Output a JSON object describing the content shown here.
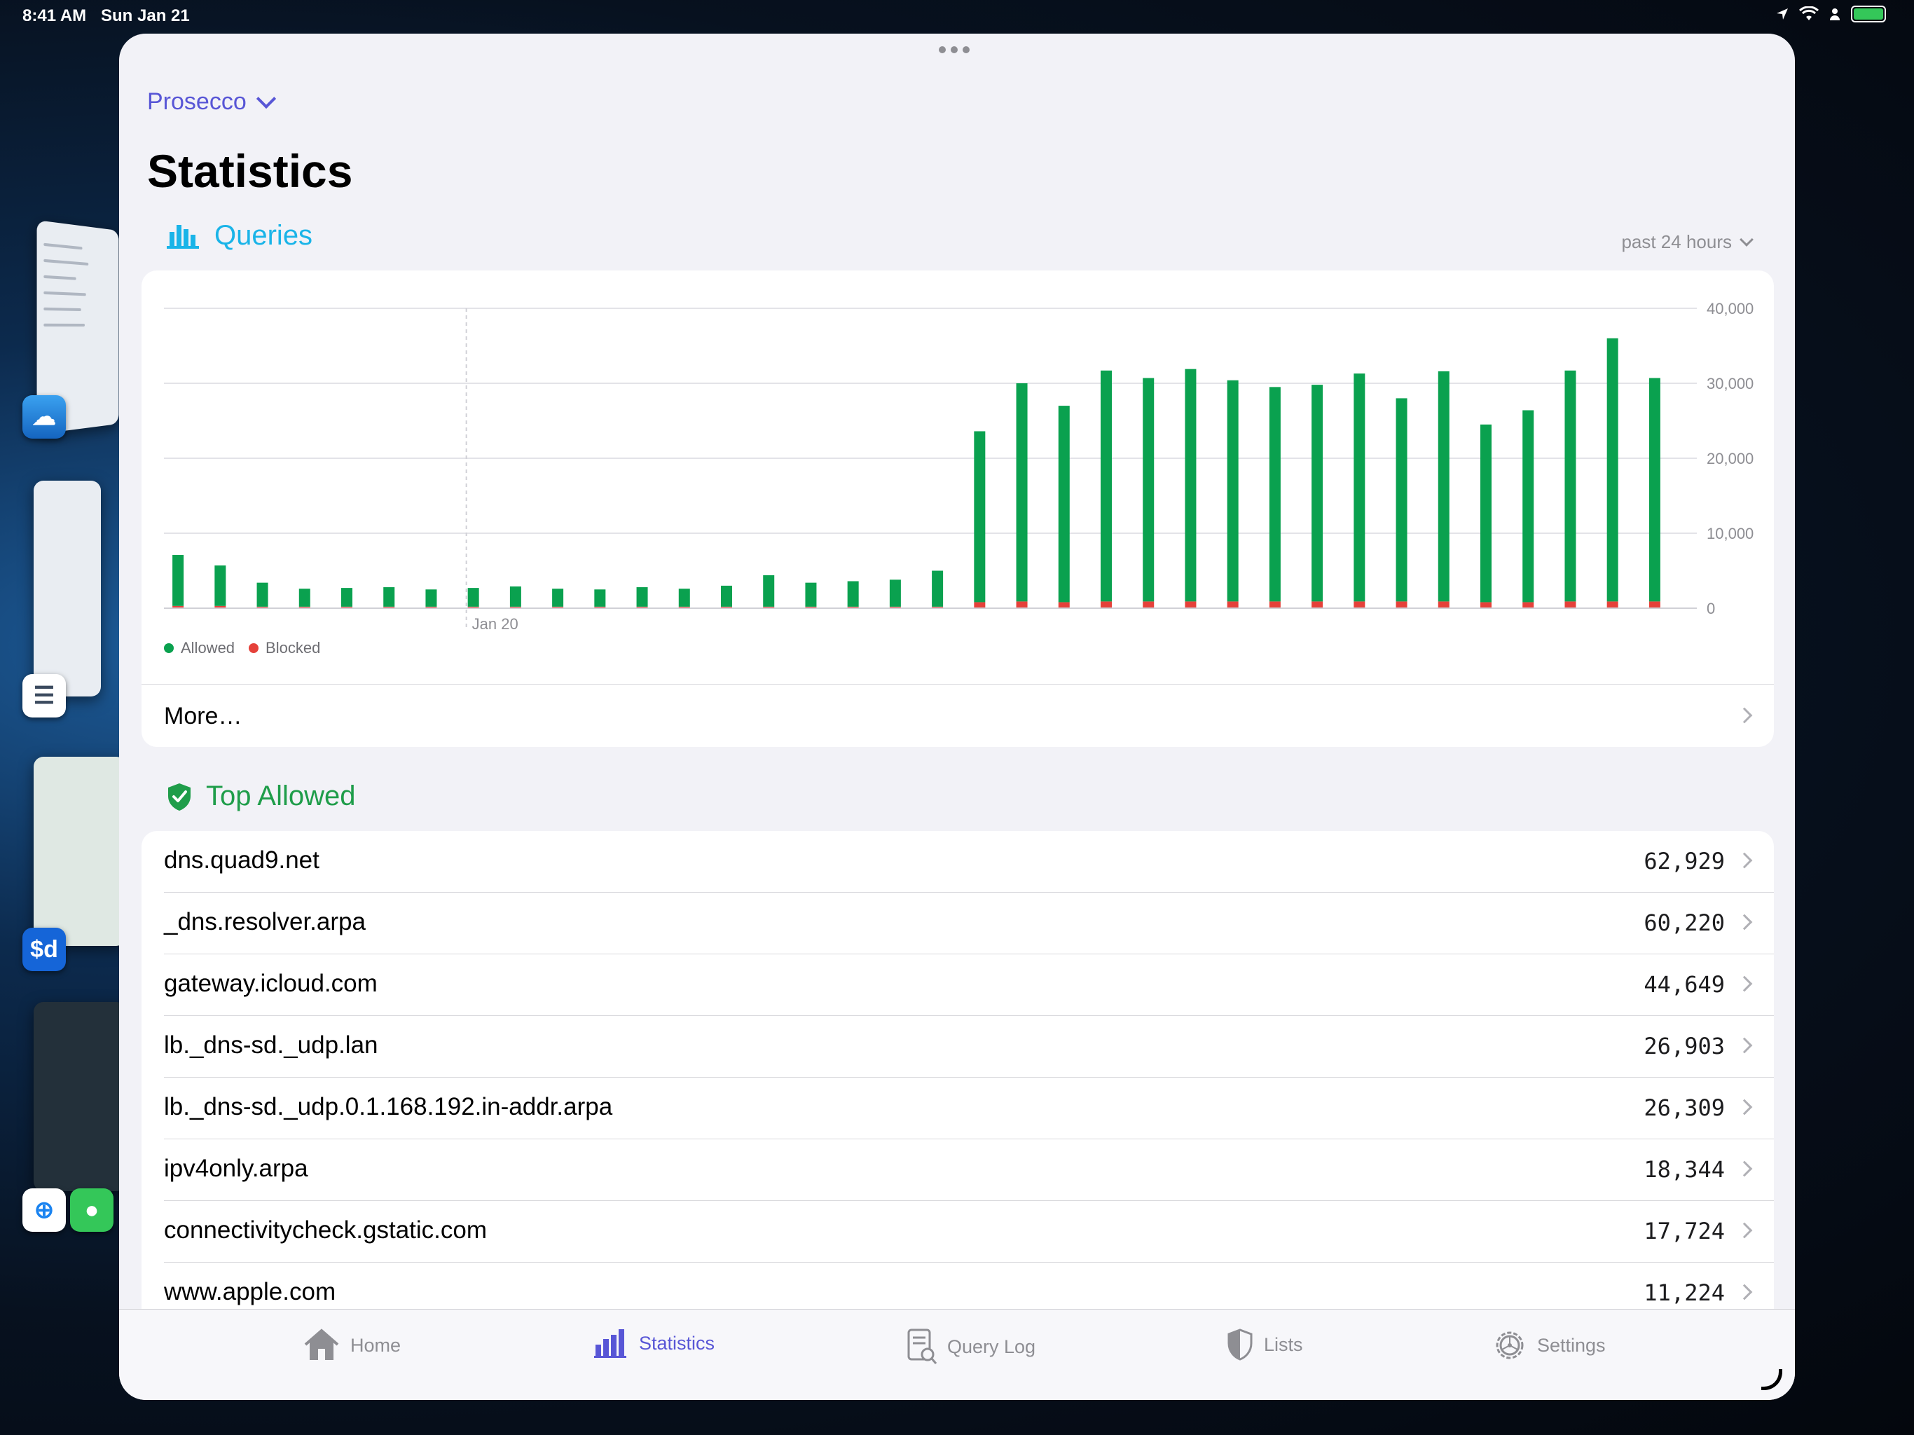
{
  "status_bar": {
    "time": "8:41 AM",
    "date": "Sun Jan 21"
  },
  "server": {
    "name": "Prosecco"
  },
  "page": {
    "title": "Statistics"
  },
  "queries": {
    "title": "Queries",
    "range": "past 24 hours",
    "more_label": "More…",
    "legend": [
      {
        "label": "Allowed",
        "color": "#0aa14f"
      },
      {
        "label": "Blocked",
        "color": "#e5413a"
      }
    ]
  },
  "chart_data": {
    "type": "bar",
    "stacked": true,
    "x_tick_labels": [
      "Jan 20"
    ],
    "y_ticks": [
      "0",
      "10,000",
      "20,000",
      "30,000",
      "40,000"
    ],
    "ylim": [
      0,
      40000
    ],
    "grid": true,
    "legend_position": "bottom-left",
    "series": [
      {
        "name": "Allowed",
        "color": "#0aa14f",
        "values": [
          6800,
          5400,
          3200,
          2400,
          2500,
          2600,
          2300,
          2500,
          2700,
          2400,
          2300,
          2600,
          2400,
          2800,
          4200,
          3200,
          3400,
          3600,
          4800,
          22800,
          29100,
          26200,
          30800,
          29800,
          31000,
          29500,
          28600,
          28900,
          30400,
          27100,
          30700,
          23700,
          25600,
          30800,
          35100,
          29800
        ]
      },
      {
        "name": "Blocked",
        "color": "#e5413a",
        "values": [
          300,
          300,
          200,
          200,
          200,
          200,
          200,
          200,
          200,
          200,
          200,
          200,
          200,
          200,
          200,
          200,
          200,
          200,
          200,
          800,
          900,
          800,
          900,
          900,
          900,
          900,
          900,
          900,
          900,
          900,
          900,
          800,
          800,
          900,
          900,
          900
        ]
      }
    ]
  },
  "top_allowed": {
    "title": "Top Allowed",
    "items": [
      {
        "name": "dns.quad9.net",
        "count": "62,929"
      },
      {
        "name": "_dns.resolver.arpa",
        "count": "60,220"
      },
      {
        "name": "gateway.icloud.com",
        "count": "44,649"
      },
      {
        "name": "lb._dns-sd._udp.lan",
        "count": "26,903"
      },
      {
        "name": "lb._dns-sd._udp.0.1.168.192.in-addr.arpa",
        "count": "26,309"
      },
      {
        "name": "ipv4only.arpa",
        "count": "18,344"
      },
      {
        "name": "connectivitycheck.gstatic.com",
        "count": "17,724"
      },
      {
        "name": "www.apple.com",
        "count": "11,224"
      }
    ]
  },
  "tabs": [
    {
      "label": "Home",
      "icon": "house-icon"
    },
    {
      "label": "Statistics",
      "icon": "bar-chart-icon",
      "active": true
    },
    {
      "label": "Query Log",
      "icon": "document-search-icon"
    },
    {
      "label": "Lists",
      "icon": "shield-icon"
    },
    {
      "label": "Settings",
      "icon": "gear-icon"
    }
  ],
  "colors": {
    "accent": "#5856d6",
    "queries": "#1ab4e8",
    "allowed": "#1f9d4a",
    "blocked": "#e5413a"
  }
}
